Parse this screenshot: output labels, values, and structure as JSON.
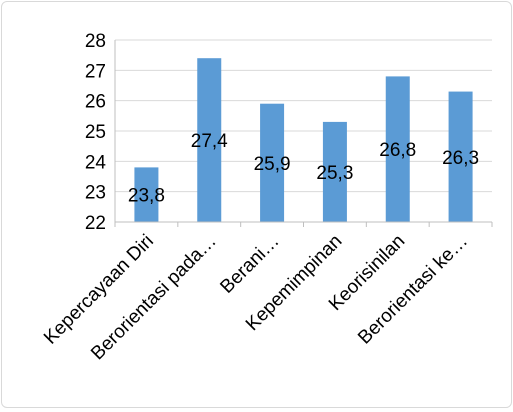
{
  "chart_data": {
    "type": "bar",
    "categories": [
      "Kepercayaan Diri",
      "Berorientasi pada…",
      "Berani…",
      "Kepemimpinan",
      "Keorisinilan",
      "Berorientasi ke…"
    ],
    "values": [
      23.8,
      27.4,
      25.9,
      25.3,
      26.8,
      26.3
    ],
    "data_labels": [
      "23,8",
      "27,4",
      "25,9",
      "25,3",
      "26,8",
      "26,3"
    ],
    "ylim": [
      22,
      28
    ],
    "yticks": [
      "22",
      "23",
      "24",
      "25",
      "26",
      "27",
      "28"
    ],
    "bar_color": "#5b9bd5",
    "gridlines": true,
    "legend": "none"
  }
}
